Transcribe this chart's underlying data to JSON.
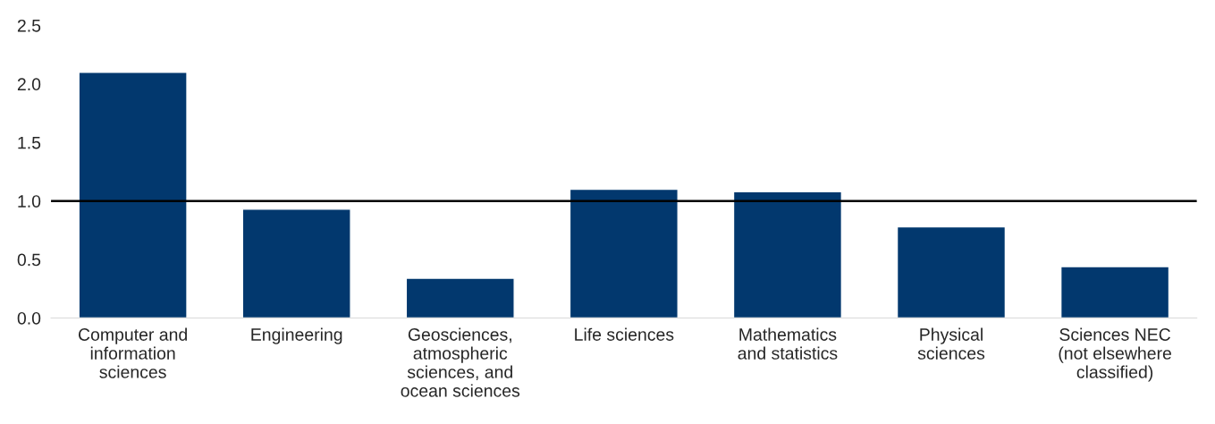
{
  "chart_data": {
    "type": "bar",
    "categories": [
      "Computer and\ninformation\nsciences",
      "Engineering",
      "Geosciences,\natmospheric\nsciences, and\nocean sciences",
      "Life sciences",
      "Mathematics\nand statistics",
      "Physical\nsciences",
      "Sciences NEC\n(not elsewhere\nclassified)"
    ],
    "values": [
      2.1,
      0.93,
      0.34,
      1.1,
      1.08,
      0.78,
      0.44
    ],
    "color": "#02386e",
    "ylim": [
      0,
      2.5
    ],
    "yticks": [
      {
        "value": 0,
        "label": "0.0"
      },
      {
        "value": 0.5,
        "label": "0.5"
      },
      {
        "value": 1,
        "label": "1.0"
      },
      {
        "value": 1.5,
        "label": "1.5"
      },
      {
        "value": 2,
        "label": "2.0"
      },
      {
        "value": 2.5,
        "label": "2.5"
      }
    ],
    "ref_lines": [
      {
        "axis": "y",
        "value": 1.0,
        "color": "#000000"
      }
    ],
    "grid": false,
    "legend": false
  }
}
